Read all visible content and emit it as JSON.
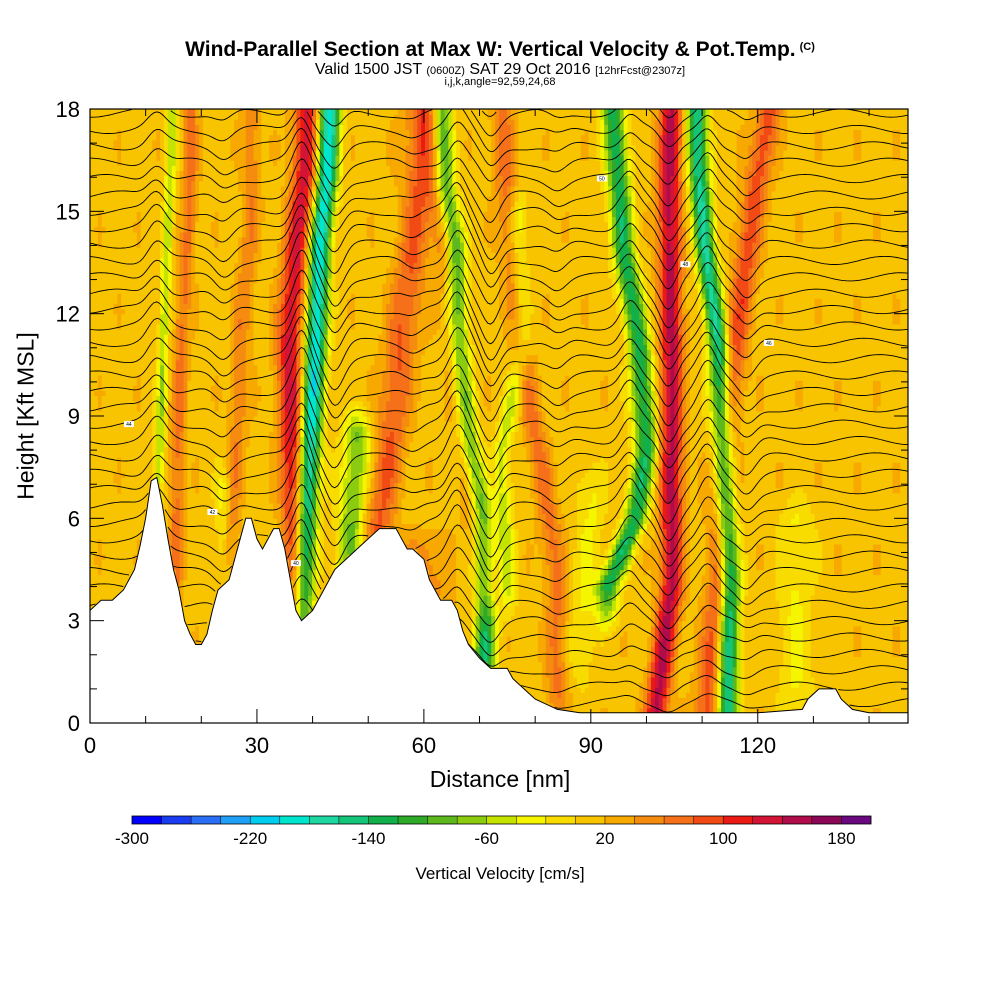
{
  "header": {
    "title": "Wind-Parallel Section at Max W: Vertical Velocity & Pot.Temp.",
    "copyright": "(C)",
    "valid_main": "Valid 1500 JST",
    "valid_utc": "(0600Z)",
    "valid_date": "SAT 29 Oct 2016",
    "valid_fcst": "[12hrFcst@2307z]",
    "indices": "i,j,k,angle=92,59,24,68"
  },
  "chart_data": {
    "type": "heatmap",
    "title": "Wind-Parallel Section at Max W: Vertical Velocity & Pot.Temp.",
    "xlabel": "Distance [nm]",
    "ylabel": "Height [Kft MSL]",
    "xlim": [
      0,
      147
    ],
    "ylim": [
      0,
      18
    ],
    "xticks": [
      0,
      30,
      60,
      90,
      120
    ],
    "yticks": [
      0,
      3,
      6,
      9,
      12,
      15,
      18
    ],
    "colorbar": {
      "label": "Vertical Velocity [cm/s]",
      "min": -300,
      "max": 200,
      "step": 20,
      "tick_labels": [
        "-300",
        "-220",
        "-140",
        "-60",
        "20",
        "100",
        "180"
      ],
      "colors": [
        "#0000ff",
        "#1a3cf0",
        "#2a6ef5",
        "#1f9ff5",
        "#00cdf0",
        "#00e6cc",
        "#1ed6a0",
        "#14c478",
        "#12b04a",
        "#2eaa28",
        "#5cb81c",
        "#8ccc10",
        "#c4e400",
        "#f5f500",
        "#f8dc00",
        "#f8c400",
        "#f7a900",
        "#f58c10",
        "#f57018",
        "#f24a14",
        "#ec1a14",
        "#d41436",
        "#b00c4a",
        "#8c0656",
        "#6a0880"
      ]
    },
    "terrain": [
      [
        0,
        3.3
      ],
      [
        2,
        3.6
      ],
      [
        4,
        3.6
      ],
      [
        6,
        3.9
      ],
      [
        8,
        4.5
      ],
      [
        9,
        5.2
      ],
      [
        10,
        6.0
      ],
      [
        11,
        7.1
      ],
      [
        12,
        7.2
      ],
      [
        13,
        6.4
      ],
      [
        14,
        5.4
      ],
      [
        15,
        4.5
      ],
      [
        16,
        3.9
      ],
      [
        17,
        3.0
      ],
      [
        18,
        2.6
      ],
      [
        19,
        2.3
      ],
      [
        20,
        2.3
      ],
      [
        21,
        2.6
      ],
      [
        22,
        3.3
      ],
      [
        23,
        3.9
      ],
      [
        25,
        4.2
      ],
      [
        27,
        5.4
      ],
      [
        28,
        6.0
      ],
      [
        29,
        6.0
      ],
      [
        30,
        5.4
      ],
      [
        31,
        5.1
      ],
      [
        32,
        5.4
      ],
      [
        33,
        5.7
      ],
      [
        34,
        5.7
      ],
      [
        35,
        5.1
      ],
      [
        36,
        4.2
      ],
      [
        37,
        3.3
      ],
      [
        38,
        3.0
      ],
      [
        40,
        3.3
      ],
      [
        42,
        3.9
      ],
      [
        44,
        4.5
      ],
      [
        46,
        4.8
      ],
      [
        48,
        5.1
      ],
      [
        50,
        5.4
      ],
      [
        52,
        5.7
      ],
      [
        55,
        5.7
      ],
      [
        56,
        5.4
      ],
      [
        57,
        5.1
      ],
      [
        58,
        5.1
      ],
      [
        60,
        4.8
      ],
      [
        61,
        4.2
      ],
      [
        62,
        3.9
      ],
      [
        63,
        3.6
      ],
      [
        65,
        3.6
      ],
      [
        66,
        3.3
      ],
      [
        67,
        2.7
      ],
      [
        68,
        2.3
      ],
      [
        70,
        1.9
      ],
      [
        72,
        1.6
      ],
      [
        75,
        1.6
      ],
      [
        76,
        1.3
      ],
      [
        78,
        1.0
      ],
      [
        80,
        0.7
      ],
      [
        84,
        0.4
      ],
      [
        88,
        0.3
      ],
      [
        120,
        0.3
      ],
      [
        128,
        0.4
      ],
      [
        129,
        0.7
      ],
      [
        131,
        1.0
      ],
      [
        134,
        1.0
      ],
      [
        135,
        0.7
      ],
      [
        137,
        0.4
      ],
      [
        140,
        0.3
      ],
      [
        147,
        0.3
      ]
    ],
    "updrafts": [
      {
        "center": [
          [
            0,
            14.2
          ],
          [
            4,
            15.2
          ],
          [
            8,
            15.8
          ],
          [
            12,
            16.6
          ],
          [
            15,
            18
          ]
        ],
        "width": 1.3,
        "amplitude": 55,
        "top": 18
      },
      {
        "center": [
          [
            0,
            22.3
          ],
          [
            4,
            24.5
          ],
          [
            8,
            26.3
          ],
          [
            12,
            27.5
          ],
          [
            15,
            29.0
          ]
        ],
        "width": 1.6,
        "amplitude": 45,
        "top": 18
      },
      {
        "center": [
          [
            2,
            38.0
          ],
          [
            5,
            37.2
          ],
          [
            8,
            36.4
          ],
          [
            11,
            35.8
          ],
          [
            14,
            37.2
          ],
          [
            16,
            38.6
          ],
          [
            18,
            39.0
          ]
        ],
        "width": 2.3,
        "amplitude": 120,
        "top": 18
      },
      {
        "center": [
          [
            3,
            50.5
          ],
          [
            6,
            52.0
          ],
          [
            9,
            54.5
          ],
          [
            12,
            56.5
          ],
          [
            15,
            59.0
          ],
          [
            18,
            59.5
          ]
        ],
        "width": 2.8,
        "amplitude": 70,
        "top": 18
      },
      {
        "center": [
          [
            4,
            71.0
          ],
          [
            8,
            68.2
          ],
          [
            10,
            66.8
          ],
          [
            12,
            65.4
          ],
          [
            14,
            64.2
          ],
          [
            16,
            62.5
          ],
          [
            18,
            61.8
          ]
        ],
        "width": 2.3,
        "amplitude": 65,
        "top": 18
      },
      {
        "center": [
          [
            1,
            84.0
          ],
          [
            4,
            84.0
          ],
          [
            6,
            82.5
          ],
          [
            8,
            80.5
          ],
          [
            10,
            78.5
          ],
          [
            12,
            77.0
          ],
          [
            15,
            75.0
          ],
          [
            18,
            74.0
          ]
        ],
        "width": 2.0,
        "amplitude": 55,
        "top": 18
      },
      {
        "center": [
          [
            0,
            101.5
          ],
          [
            4,
            104.5
          ],
          [
            8,
            104.5
          ],
          [
            12,
            104.5
          ],
          [
            15,
            104.0
          ],
          [
            18,
            104.5
          ]
        ],
        "width": 2.0,
        "amplitude": 135,
        "top": 18
      },
      {
        "center": [
          [
            0,
            110.5
          ],
          [
            4,
            113.0
          ],
          [
            8,
            113.8
          ],
          [
            11,
            116.0
          ],
          [
            15,
            119.0
          ],
          [
            18,
            122.0
          ]
        ],
        "width": 2.2,
        "amplitude": 80,
        "top": 18
      },
      {
        "center": [
          [
            0,
            60.0
          ],
          [
            3,
            61.0
          ],
          [
            5,
            60.0
          ]
        ],
        "width": 4.0,
        "amplitude": 40,
        "top": 5
      }
    ],
    "downdrafts": [
      {
        "center": [
          [
            6,
            12.0
          ],
          [
            9,
            12.8
          ],
          [
            12,
            13.3
          ],
          [
            15,
            14.2
          ],
          [
            18,
            14.8
          ]
        ],
        "width": 0.9,
        "amplitude": -70,
        "top": 18
      },
      {
        "center": [
          [
            1,
            24.0
          ],
          [
            3,
            24.5
          ],
          [
            5,
            24.0
          ]
        ],
        "width": 1.4,
        "amplitude": -45,
        "top": 7
      },
      {
        "center": [
          [
            2,
            38.3
          ],
          [
            5,
            38.5
          ],
          [
            8,
            39.5
          ],
          [
            11,
            40.5
          ],
          [
            14,
            41.3
          ],
          [
            16,
            42.5
          ],
          [
            18,
            43.0
          ]
        ],
        "width": 1.9,
        "amplitude": -210,
        "top": 18
      },
      {
        "center": [
          [
            4,
            46.5
          ],
          [
            6,
            47.0
          ],
          [
            8,
            48.0
          ]
        ],
        "width": 2.4,
        "amplitude": -95,
        "top": 8.5
      },
      {
        "center": [
          [
            0,
            70.8
          ],
          [
            3,
            71.0
          ],
          [
            6,
            70.5
          ],
          [
            8,
            68.5
          ],
          [
            10,
            67.0
          ],
          [
            12,
            66.0
          ],
          [
            14,
            65.5
          ],
          [
            16,
            63.5
          ],
          [
            18,
            63.0
          ]
        ],
        "width": 1.9,
        "amplitude": -150,
        "top": 18
      },
      {
        "center": [
          [
            4,
            75.0
          ],
          [
            8,
            74.0
          ],
          [
            11,
            78.0
          ],
          [
            14,
            77.0
          ]
        ],
        "width": 1.6,
        "amplitude": -60,
        "top": 15
      },
      {
        "center": [
          [
            4,
            93.0
          ],
          [
            6,
            98.0
          ],
          [
            8,
            100.0
          ],
          [
            11,
            98.8
          ],
          [
            14,
            95.8
          ],
          [
            16,
            95.0
          ],
          [
            18,
            94.0
          ]
        ],
        "width": 2.0,
        "amplitude": -145,
        "top": 18
      },
      {
        "center": [
          [
            0,
            114.5
          ],
          [
            4,
            115.0
          ],
          [
            7,
            114.0
          ],
          [
            11,
            113.0
          ],
          [
            14,
            110.5
          ],
          [
            16,
            109.5
          ],
          [
            18,
            109.0
          ]
        ],
        "width": 1.8,
        "amplitude": -175,
        "top": 18
      },
      {
        "center": [
          [
            1,
            127.0
          ],
          [
            3,
            126.5
          ],
          [
            5,
            127.0
          ]
        ],
        "width": 3.0,
        "amplitude": -35,
        "top": 6
      },
      {
        "center": [
          [
            2,
            88.0
          ],
          [
            4,
            89.0
          ],
          [
            6,
            90.0
          ]
        ],
        "width": 2.5,
        "amplitude": -35,
        "top": 7
      }
    ],
    "theta_contours": {
      "levels": 44,
      "spacing_kft": 0.48,
      "wave_nodes_nm": [
        [
          12,
          0.6
        ],
        [
          24,
          -0.4
        ],
        [
          38,
          1.2
        ],
        [
          44,
          -0.8
        ],
        [
          58,
          -0.2
        ],
        [
          66,
          0.9
        ],
        [
          72,
          -0.9
        ],
        [
          84,
          -0.3
        ],
        [
          97,
          0.7
        ],
        [
          104,
          -0.9
        ],
        [
          111,
          0.8
        ],
        [
          118,
          -0.5
        ]
      ],
      "labels": [
        "38",
        "40",
        "42",
        "44",
        "46",
        "48",
        "50",
        "52",
        "54"
      ]
    }
  }
}
